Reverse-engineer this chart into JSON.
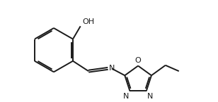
{
  "bg_color": "#ffffff",
  "line_color": "#1a1a1a",
  "line_width": 1.4,
  "font_size": 7.5,
  "fig_width": 3.08,
  "fig_height": 1.45,
  "dpi": 100,
  "xlim": [
    0.0,
    7.2
  ],
  "ylim": [
    0.5,
    4.2
  ]
}
